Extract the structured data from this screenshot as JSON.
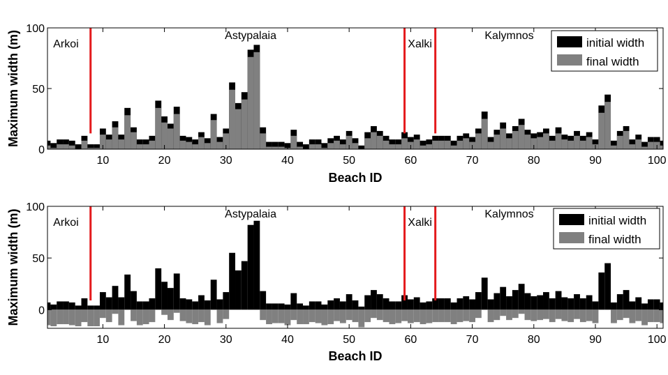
{
  "chart_data": [
    {
      "type": "bar",
      "subtype": "overlaid",
      "xlabel": "Beach ID",
      "ylabel": "Maximum width (m)",
      "xlim": [
        1,
        101
      ],
      "ylim": [
        0,
        100
      ],
      "xticks": [
        10,
        20,
        30,
        40,
        50,
        60,
        70,
        80,
        90,
        100
      ],
      "yticks": [
        0,
        50,
        100
      ],
      "legend": {
        "position": "top-right",
        "entries": [
          "initial width",
          "final width"
        ]
      },
      "colors": {
        "initial": "#000000",
        "final": "#808080",
        "separator": "#e41a1c"
      },
      "separators": [
        8,
        59,
        64
      ],
      "regions": [
        {
          "label": "Arkoi",
          "x": 4
        },
        {
          "label": "Astypalaia",
          "x": 34
        },
        {
          "label": "Xalki",
          "x": 61.5
        },
        {
          "label": "Kalymnos",
          "x": 76
        }
      ],
      "x": [
        1,
        2,
        3,
        4,
        5,
        6,
        7,
        8,
        9,
        10,
        11,
        12,
        13,
        14,
        15,
        16,
        17,
        18,
        19,
        20,
        21,
        22,
        23,
        24,
        25,
        26,
        27,
        28,
        29,
        30,
        31,
        32,
        33,
        34,
        35,
        36,
        37,
        38,
        39,
        40,
        41,
        42,
        43,
        44,
        45,
        46,
        47,
        48,
        49,
        50,
        51,
        52,
        53,
        54,
        55,
        56,
        57,
        58,
        59,
        60,
        61,
        62,
        63,
        64,
        65,
        66,
        67,
        68,
        69,
        70,
        71,
        72,
        73,
        74,
        75,
        76,
        77,
        78,
        79,
        80,
        81,
        82,
        83,
        84,
        85,
        86,
        87,
        88,
        89,
        90,
        91,
        92,
        93,
        94,
        95,
        96,
        97,
        98,
        99,
        100,
        101
      ],
      "series": [
        {
          "name": "initial width",
          "values": [
            7,
            5,
            8,
            8,
            7,
            4,
            11,
            4,
            4,
            17,
            12,
            23,
            12,
            34,
            18,
            8,
            8,
            11,
            40,
            27,
            21,
            35,
            11,
            10,
            8,
            14,
            9,
            29,
            10,
            17,
            55,
            38,
            47,
            82,
            86,
            18,
            6,
            6,
            6,
            5,
            16,
            6,
            4,
            8,
            8,
            5,
            9,
            11,
            8,
            15,
            9,
            3,
            14,
            19,
            15,
            11,
            8,
            8,
            14,
            10,
            12,
            7,
            8,
            11,
            11,
            11,
            7,
            11,
            13,
            10,
            17,
            31,
            10,
            16,
            22,
            13,
            19,
            25,
            16,
            13,
            14,
            17,
            11,
            18,
            12,
            11,
            15,
            11,
            14,
            8,
            36,
            45,
            7,
            15,
            19,
            8,
            12,
            6,
            10,
            10,
            7
          ]
        },
        {
          "name": "final width",
          "values": [
            3,
            1,
            4,
            4,
            3,
            0,
            7,
            1,
            1,
            12,
            8,
            18,
            8,
            28,
            14,
            4,
            4,
            7,
            34,
            22,
            17,
            29,
            7,
            6,
            4,
            10,
            5,
            24,
            6,
            13,
            49,
            33,
            41,
            76,
            80,
            13,
            2,
            2,
            2,
            1,
            11,
            2,
            0,
            4,
            4,
            1,
            5,
            7,
            4,
            11,
            5,
            0,
            9,
            14,
            11,
            7,
            4,
            4,
            9,
            6,
            8,
            3,
            4,
            7,
            7,
            7,
            3,
            7,
            9,
            6,
            13,
            25,
            6,
            12,
            17,
            9,
            15,
            20,
            12,
            9,
            10,
            13,
            7,
            13,
            8,
            7,
            11,
            7,
            10,
            4,
            30,
            39,
            3,
            11,
            15,
            4,
            8,
            2,
            6,
            6,
            3
          ]
        }
      ]
    },
    {
      "type": "bar",
      "subtype": "stacked-diverging",
      "xlabel": "Beach ID",
      "ylabel": "Maximum width (m)",
      "xlim": [
        1,
        101
      ],
      "ylim": [
        -18,
        100
      ],
      "xticks": [
        10,
        20,
        30,
        40,
        50,
        60,
        70,
        80,
        90,
        100
      ],
      "yticks": [
        0,
        50,
        100
      ],
      "legend": {
        "position": "top-right",
        "entries": [
          "initial width",
          "final width"
        ]
      },
      "colors": {
        "initial": "#000000",
        "final": "#808080",
        "separator": "#e41a1c"
      },
      "separators": [
        8,
        59,
        64
      ],
      "regions": [
        {
          "label": "Arkoi",
          "x": 4
        },
        {
          "label": "Astypalaia",
          "x": 34
        },
        {
          "label": "Xalki",
          "x": 61.5
        },
        {
          "label": "Kalymnos",
          "x": 76
        }
      ],
      "x": [
        1,
        2,
        3,
        4,
        5,
        6,
        7,
        8,
        9,
        10,
        11,
        12,
        13,
        14,
        15,
        16,
        17,
        18,
        19,
        20,
        21,
        22,
        23,
        24,
        25,
        26,
        27,
        28,
        29,
        30,
        31,
        32,
        33,
        34,
        35,
        36,
        37,
        38,
        39,
        40,
        41,
        42,
        43,
        44,
        45,
        46,
        47,
        48,
        49,
        50,
        51,
        52,
        53,
        54,
        55,
        56,
        57,
        58,
        59,
        60,
        61,
        62,
        63,
        64,
        65,
        66,
        67,
        68,
        69,
        70,
        71,
        72,
        73,
        74,
        75,
        76,
        77,
        78,
        79,
        80,
        81,
        82,
        83,
        84,
        85,
        86,
        87,
        88,
        89,
        90,
        91,
        92,
        93,
        94,
        95,
        96,
        97,
        98,
        99,
        100,
        101
      ],
      "series": [
        {
          "name": "initial width",
          "values": [
            7,
            5,
            8,
            8,
            7,
            4,
            11,
            4,
            4,
            17,
            12,
            23,
            12,
            34,
            18,
            8,
            8,
            11,
            40,
            27,
            21,
            35,
            11,
            10,
            8,
            14,
            9,
            29,
            10,
            17,
            55,
            38,
            47,
            82,
            86,
            18,
            6,
            6,
            6,
            5,
            16,
            6,
            4,
            8,
            8,
            5,
            9,
            11,
            8,
            15,
            9,
            3,
            14,
            19,
            15,
            11,
            8,
            8,
            14,
            10,
            12,
            7,
            8,
            11,
            11,
            11,
            7,
            11,
            13,
            10,
            17,
            31,
            10,
            16,
            22,
            13,
            19,
            25,
            16,
            13,
            14,
            17,
            11,
            18,
            12,
            11,
            15,
            11,
            14,
            8,
            36,
            45,
            7,
            15,
            19,
            8,
            12,
            6,
            10,
            10,
            7
          ]
        },
        {
          "name": "final width",
          "values": [
            -15,
            -16,
            -14,
            -14,
            -15,
            -16,
            -12,
            -16,
            -16,
            -8,
            -12,
            -4,
            -15,
            0,
            -11,
            -15,
            -14,
            -12,
            0,
            -5,
            -10,
            -3,
            -11,
            -13,
            -14,
            -12,
            -15,
            0,
            -13,
            -9,
            0,
            0,
            0,
            0,
            0,
            -10,
            -14,
            -13,
            -13,
            -15,
            -10,
            -14,
            -14,
            -12,
            -13,
            -15,
            -14,
            -11,
            -13,
            -10,
            -12,
            -17,
            -12,
            -8,
            -10,
            -12,
            -14,
            -13,
            -11,
            -13,
            -12,
            -14,
            -13,
            -12,
            -12,
            -12,
            -14,
            -12,
            -11,
            -12,
            -8,
            0,
            -12,
            -10,
            -6,
            -10,
            -8,
            -4,
            -10,
            -11,
            -10,
            -9,
            -12,
            -9,
            -11,
            -12,
            -9,
            -12,
            -11,
            -13,
            0,
            0,
            -13,
            -10,
            -8,
            -13,
            -11,
            -15,
            -12,
            -12,
            -13
          ]
        }
      ]
    }
  ]
}
